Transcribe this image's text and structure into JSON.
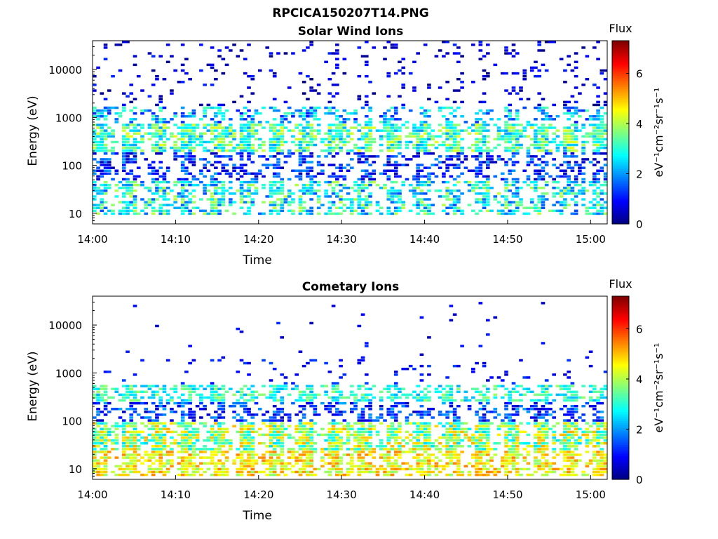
{
  "figure_title": "RPCICA150207T14.PNG",
  "colormap": [
    "#00007f",
    "#0000ff",
    "#007fff",
    "#00ffff",
    "#7fff7f",
    "#ffff00",
    "#ff7f00",
    "#ff0000",
    "#7f0000"
  ],
  "chart_data": [
    {
      "type": "heatmap",
      "title": "Solar Wind Ions",
      "xlabel": "Time",
      "ylabel": "Energy (eV)",
      "y_scale": "log",
      "xlim": [
        "14:00",
        "15:02"
      ],
      "ylim": [
        6,
        40000
      ],
      "x_ticks": [
        "14:00",
        "14:10",
        "14:20",
        "14:30",
        "14:40",
        "14:50",
        "15:00"
      ],
      "y_ticks": [
        10,
        100,
        1000,
        10000
      ],
      "y_tick_labels": [
        "10",
        "100",
        "1000",
        "10000"
      ],
      "colorbar": {
        "label": "Flux",
        "unit": "eV⁻¹cm⁻²sr⁻¹s⁻¹",
        "range": [
          0,
          7.3
        ],
        "ticks": [
          0,
          2,
          4,
          6
        ]
      },
      "bands": [
        {
          "e_min": 9,
          "e_max": 45,
          "flux": 2.8,
          "density": 0.65,
          "flux_spread": 0.9
        },
        {
          "e_min": 50,
          "e_max": 200,
          "flux": 1.2,
          "density": 0.5,
          "flux_spread": 0.6
        },
        {
          "e_min": 200,
          "e_max": 700,
          "flux": 3.2,
          "density": 0.85,
          "flux_spread": 0.8
        },
        {
          "e_min": 700,
          "e_max": 1800,
          "flux": 2.2,
          "density": 0.45,
          "flux_spread": 0.8
        },
        {
          "e_min": 1800,
          "e_max": 40000,
          "flux": 0.6,
          "density": 0.12,
          "flux_spread": 0.4
        }
      ]
    },
    {
      "type": "heatmap",
      "title": "Cometary Ions",
      "xlabel": "Time",
      "ylabel": "Energy (eV)",
      "y_scale": "log",
      "xlim": [
        "14:00",
        "15:02"
      ],
      "ylim": [
        6,
        40000
      ],
      "x_ticks": [
        "14:00",
        "14:10",
        "14:20",
        "14:30",
        "14:40",
        "14:50",
        "15:00"
      ],
      "y_ticks": [
        10,
        100,
        1000,
        10000
      ],
      "y_tick_labels": [
        "10",
        "100",
        "1000",
        "10000"
      ],
      "colorbar": {
        "label": "Flux",
        "unit": "eV⁻¹cm⁻²sr⁻¹s⁻¹",
        "range": [
          0,
          7.3
        ],
        "ticks": [
          0,
          2,
          4,
          6
        ]
      },
      "bands": [
        {
          "e_min": 7,
          "e_max": 25,
          "flux": 4.6,
          "density": 0.8,
          "flux_spread": 0.6
        },
        {
          "e_min": 25,
          "e_max": 90,
          "flux": 3.8,
          "density": 0.9,
          "flux_spread": 0.9
        },
        {
          "e_min": 90,
          "e_max": 250,
          "flux": 1.3,
          "density": 0.5,
          "flux_spread": 0.6
        },
        {
          "e_min": 250,
          "e_max": 600,
          "flux": 3.0,
          "density": 0.7,
          "flux_spread": 0.6
        },
        {
          "e_min": 600,
          "e_max": 2000,
          "flux": 1.0,
          "density": 0.08,
          "flux_spread": 0.3
        },
        {
          "e_min": 2000,
          "e_max": 30000,
          "flux": 0.8,
          "density": 0.015,
          "flux_spread": 0.3
        }
      ]
    }
  ]
}
